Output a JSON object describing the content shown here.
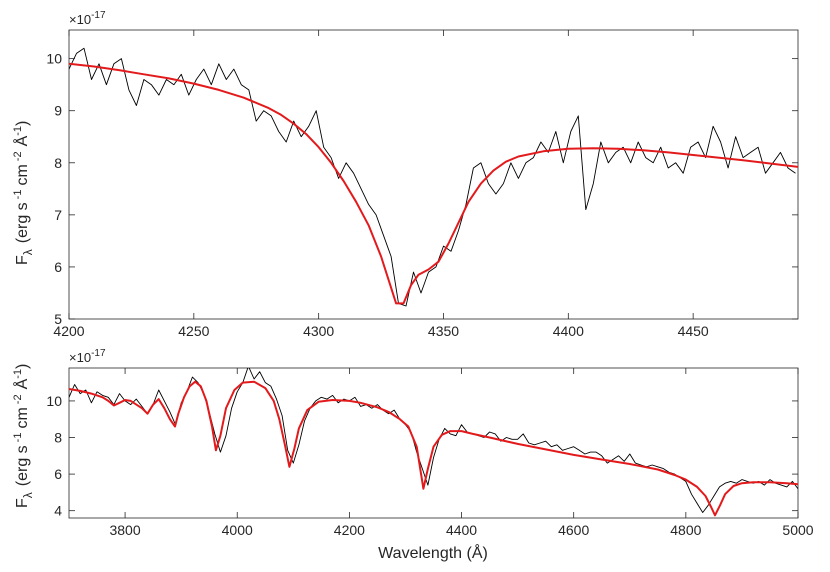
{
  "chart_data": [
    {
      "type": "line",
      "ylabel_main": "F",
      "ylabel_sub": "λ",
      "ylabel_unit": "(erg s",
      "ylabel_unit_sup1": "-1",
      "ylabel_unit_mid": "cm",
      "ylabel_unit_sup2": "-2",
      "ylabel_unit_ang": "Å",
      "ylabel_unit_sup3": "-1",
      "ylabel_unit_end": ")",
      "y_multiplier_base": "×10",
      "y_multiplier_exp": "-17",
      "xlim": [
        4200,
        4492
      ],
      "ylim": [
        5,
        10.55
      ],
      "xticks": [
        4200,
        4250,
        4300,
        4350,
        4400,
        4450
      ],
      "yticks": [
        5,
        6,
        7,
        8,
        9,
        10
      ],
      "grid": false,
      "series": [
        {
          "color": "#000000",
          "x": [
            4200,
            4203,
            4206,
            4209,
            4212,
            4215,
            4218,
            4221,
            4224,
            4227,
            4230,
            4233,
            4236,
            4239,
            4242,
            4245,
            4248,
            4251,
            4254,
            4257,
            4260,
            4263,
            4266,
            4269,
            4272,
            4275,
            4278,
            4281,
            4284,
            4287,
            4290,
            4293,
            4296,
            4299,
            4302,
            4305,
            4308,
            4311,
            4314,
            4317,
            4320,
            4323,
            4326,
            4329,
            4332,
            4335,
            4338,
            4341,
            4344,
            4347,
            4350,
            4353,
            4356,
            4359,
            4362,
            4365,
            4368,
            4371,
            4374,
            4377,
            4380,
            4383,
            4386,
            4389,
            4392,
            4395,
            4398,
            4401,
            4404,
            4407,
            4410,
            4413,
            4416,
            4419,
            4422,
            4425,
            4428,
            4431,
            4434,
            4437,
            4440,
            4443,
            4446,
            4449,
            4452,
            4455,
            4458,
            4461,
            4464,
            4467,
            4470,
            4473,
            4476,
            4479,
            4482,
            4485,
            4488,
            4491
          ],
          "y": [
            9.8,
            10.1,
            10.2,
            9.6,
            9.9,
            9.5,
            9.9,
            10.0,
            9.4,
            9.1,
            9.6,
            9.5,
            9.3,
            9.6,
            9.5,
            9.7,
            9.3,
            9.6,
            9.8,
            9.5,
            9.9,
            9.6,
            9.8,
            9.5,
            9.4,
            8.8,
            9.0,
            8.9,
            8.6,
            8.4,
            8.8,
            8.5,
            8.7,
            9.0,
            8.3,
            8.1,
            7.7,
            8.0,
            7.8,
            7.5,
            7.2,
            7.0,
            6.6,
            6.2,
            5.3,
            5.25,
            5.9,
            5.5,
            5.9,
            6.0,
            6.4,
            6.3,
            6.7,
            7.2,
            7.9,
            8.0,
            7.6,
            7.4,
            7.6,
            8.0,
            7.7,
            8.0,
            8.1,
            8.4,
            8.2,
            8.6,
            8.0,
            8.6,
            8.9,
            7.1,
            7.6,
            8.4,
            8.0,
            8.2,
            8.3,
            8.0,
            8.4,
            8.1,
            8.0,
            8.3,
            7.9,
            8.0,
            7.8,
            8.3,
            8.4,
            8.1,
            8.7,
            8.4,
            7.9,
            8.5,
            8.1,
            8.2,
            8.3,
            7.8,
            8.0,
            8.2,
            7.9,
            7.8
          ]
        },
        {
          "color": "#e31a1c",
          "x": [
            4200,
            4210,
            4220,
            4230,
            4240,
            4250,
            4260,
            4270,
            4280,
            4285,
            4290,
            4295,
            4300,
            4305,
            4310,
            4315,
            4320,
            4325,
            4328,
            4331,
            4334,
            4337,
            4340,
            4344,
            4348,
            4352,
            4356,
            4360,
            4365,
            4370,
            4375,
            4380,
            4390,
            4400,
            4410,
            4420,
            4430,
            4440,
            4450,
            4460,
            4470,
            4480,
            4492
          ],
          "y": [
            9.9,
            9.85,
            9.78,
            9.7,
            9.62,
            9.52,
            9.4,
            9.25,
            9.05,
            8.92,
            8.75,
            8.55,
            8.3,
            8.0,
            7.65,
            7.25,
            6.8,
            6.2,
            5.75,
            5.3,
            5.3,
            5.65,
            5.85,
            5.95,
            6.1,
            6.45,
            6.85,
            7.25,
            7.6,
            7.85,
            8.02,
            8.12,
            8.22,
            8.27,
            8.28,
            8.27,
            8.24,
            8.2,
            8.15,
            8.1,
            8.05,
            7.99,
            7.92
          ]
        }
      ]
    },
    {
      "type": "line",
      "xlabel": "Wavelength (Å)",
      "ylabel_main": "F",
      "ylabel_sub": "λ",
      "ylabel_unit": "(erg s",
      "ylabel_unit_sup1": "-1",
      "ylabel_unit_mid": "cm",
      "ylabel_unit_sup2": "-2",
      "ylabel_unit_ang": "Å",
      "ylabel_unit_sup3": "-1",
      "ylabel_unit_end": ")",
      "y_multiplier_base": "×10",
      "y_multiplier_exp": "-17",
      "xlim": [
        3700,
        5000
      ],
      "ylim": [
        3.6,
        11.8
      ],
      "xticks": [
        3800,
        4000,
        4200,
        4400,
        4600,
        4800,
        5000
      ],
      "yticks": [
        4,
        6,
        8,
        10
      ],
      "grid": false,
      "series": [
        {
          "color": "#000000",
          "x": [
            3700,
            3710,
            3720,
            3730,
            3740,
            3750,
            3760,
            3770,
            3780,
            3790,
            3800,
            3810,
            3820,
            3830,
            3840,
            3850,
            3860,
            3870,
            3880,
            3890,
            3900,
            3910,
            3920,
            3930,
            3940,
            3950,
            3960,
            3970,
            3980,
            3990,
            4000,
            4010,
            4020,
            4030,
            4040,
            4050,
            4060,
            4070,
            4080,
            4090,
            4100,
            4110,
            4120,
            4130,
            4140,
            4150,
            4160,
            4170,
            4180,
            4190,
            4200,
            4210,
            4220,
            4230,
            4240,
            4250,
            4260,
            4270,
            4280,
            4290,
            4300,
            4310,
            4320,
            4330,
            4340,
            4350,
            4360,
            4370,
            4380,
            4390,
            4400,
            4410,
            4420,
            4430,
            4440,
            4450,
            4460,
            4470,
            4480,
            4490,
            4500,
            4510,
            4520,
            4530,
            4540,
            4550,
            4560,
            4570,
            4580,
            4590,
            4600,
            4610,
            4620,
            4630,
            4640,
            4650,
            4660,
            4670,
            4680,
            4690,
            4700,
            4710,
            4720,
            4730,
            4740,
            4750,
            4760,
            4770,
            4780,
            4790,
            4800,
            4810,
            4820,
            4830,
            4840,
            4850,
            4860,
            4870,
            4880,
            4890,
            4900,
            4910,
            4920,
            4930,
            4940,
            4950,
            4960,
            4970,
            4980,
            4990,
            5000
          ],
          "y": [
            10.2,
            10.9,
            10.4,
            10.6,
            9.9,
            10.5,
            10.3,
            10.2,
            9.8,
            10.4,
            10.0,
            9.8,
            10.1,
            9.7,
            9.3,
            9.8,
            10.6,
            10.0,
            9.4,
            8.7,
            9.9,
            10.5,
            11.3,
            11.0,
            10.4,
            9.4,
            8.2,
            7.2,
            8.1,
            9.6,
            10.5,
            11.0,
            11.9,
            11.2,
            11.6,
            11.0,
            10.8,
            10.1,
            9.2,
            7.3,
            6.6,
            7.6,
            8.9,
            9.6,
            10.0,
            10.2,
            10.1,
            10.3,
            9.9,
            10.1,
            10.0,
            10.2,
            9.7,
            9.8,
            9.6,
            9.8,
            9.5,
            9.3,
            9.5,
            9.0,
            8.7,
            8.3,
            7.2,
            6.3,
            5.4,
            6.9,
            7.9,
            8.5,
            8.2,
            8.1,
            8.7,
            8.3,
            8.2,
            8.1,
            8.0,
            8.3,
            8.2,
            7.8,
            8.0,
            7.9,
            7.9,
            8.2,
            7.7,
            7.6,
            7.7,
            7.8,
            7.5,
            7.6,
            7.3,
            7.4,
            7.5,
            7.3,
            7.1,
            7.2,
            7.2,
            7.0,
            6.6,
            6.8,
            7.0,
            6.7,
            7.1,
            6.6,
            6.5,
            6.4,
            6.5,
            6.4,
            6.3,
            6.1,
            6.0,
            5.8,
            5.6,
            4.9,
            4.4,
            3.9,
            4.3,
            4.8,
            5.3,
            5.5,
            5.6,
            5.5,
            5.7,
            5.6,
            5.5,
            5.6,
            5.4,
            5.7,
            5.5,
            5.4,
            5.3,
            5.6,
            5.2
          ]
        },
        {
          "color": "#e31a1c",
          "x": [
            3700,
            3720,
            3740,
            3760,
            3770,
            3780,
            3790,
            3800,
            3810,
            3820,
            3830,
            3840,
            3850,
            3860,
            3870,
            3880,
            3889,
            3895,
            3905,
            3915,
            3925,
            3935,
            3945,
            3955,
            3962,
            3970,
            3980,
            3995,
            4010,
            4030,
            4050,
            4065,
            4075,
            4085,
            4093,
            4102,
            4110,
            4125,
            4145,
            4170,
            4200,
            4220,
            4250,
            4270,
            4290,
            4305,
            4320,
            4332,
            4340,
            4350,
            4365,
            4380,
            4400,
            4420,
            4450,
            4500,
            4550,
            4600,
            4650,
            4700,
            4750,
            4780,
            4800,
            4820,
            4835,
            4845,
            4852,
            4861,
            4870,
            4885,
            4900,
            4920,
            4950,
            4980,
            5000
          ],
          "y": [
            10.65,
            10.55,
            10.4,
            10.2,
            10.0,
            9.75,
            9.9,
            10.05,
            10.0,
            9.8,
            9.6,
            9.3,
            9.8,
            10.1,
            9.6,
            9.0,
            8.6,
            9.3,
            10.2,
            10.8,
            11.05,
            10.8,
            10.0,
            8.6,
            7.3,
            8.1,
            9.6,
            10.6,
            11.0,
            11.05,
            10.7,
            10.0,
            9.0,
            7.6,
            6.4,
            7.4,
            8.5,
            9.5,
            9.95,
            10.05,
            10.0,
            9.9,
            9.65,
            9.4,
            9.0,
            8.6,
            7.5,
            5.2,
            6.3,
            7.5,
            8.15,
            8.35,
            8.35,
            8.2,
            8.0,
            7.65,
            7.35,
            7.05,
            6.8,
            6.55,
            6.25,
            5.95,
            5.7,
            5.3,
            4.8,
            4.2,
            3.75,
            4.3,
            4.9,
            5.35,
            5.5,
            5.55,
            5.55,
            5.5,
            5.45
          ]
        }
      ]
    }
  ]
}
